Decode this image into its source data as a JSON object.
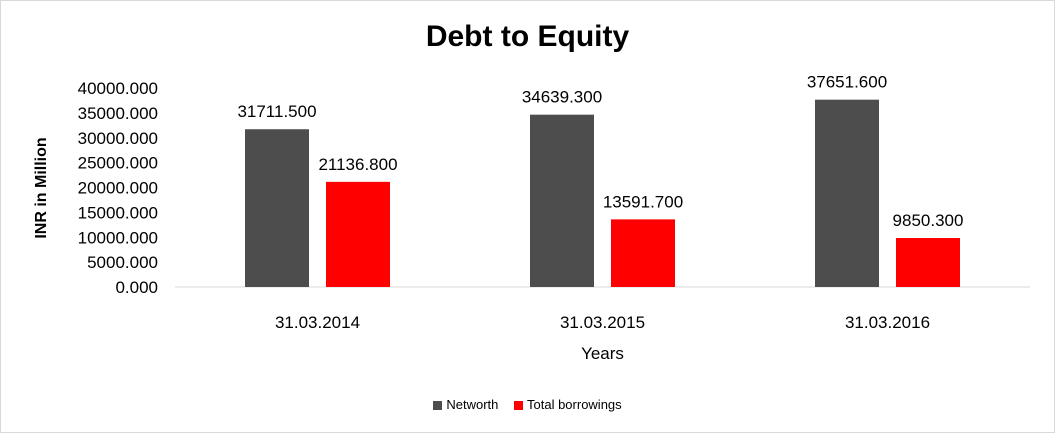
{
  "chart_data": {
    "type": "bar",
    "title": "Debt to Equity",
    "xlabel": "Years",
    "ylabel": "INR in Million",
    "categories": [
      "31.03.2014",
      "31.03.2015",
      "31.03.2016"
    ],
    "series": [
      {
        "name": "Networth",
        "color": "#4d4d4d",
        "values": [
          31711.5,
          34639.3,
          37651.6
        ],
        "labels": [
          "31711.500",
          "34639.300",
          "37651.600"
        ]
      },
      {
        "name": "Total borrowings",
        "color": "#ff0000",
        "values": [
          21136.8,
          13591.7,
          9850.3
        ],
        "labels": [
          "21136.800",
          "13591.700",
          "9850.300"
        ]
      }
    ],
    "ylim": [
      0,
      40000
    ],
    "yticks": [
      0,
      5000,
      10000,
      15000,
      20000,
      25000,
      30000,
      35000,
      40000
    ],
    "ytick_labels": [
      "0.000",
      "5000.000",
      "10000.000",
      "15000.000",
      "20000.000",
      "25000.000",
      "30000.000",
      "35000.000",
      "40000.000"
    ],
    "grid": false,
    "legend_position": "bottom"
  }
}
